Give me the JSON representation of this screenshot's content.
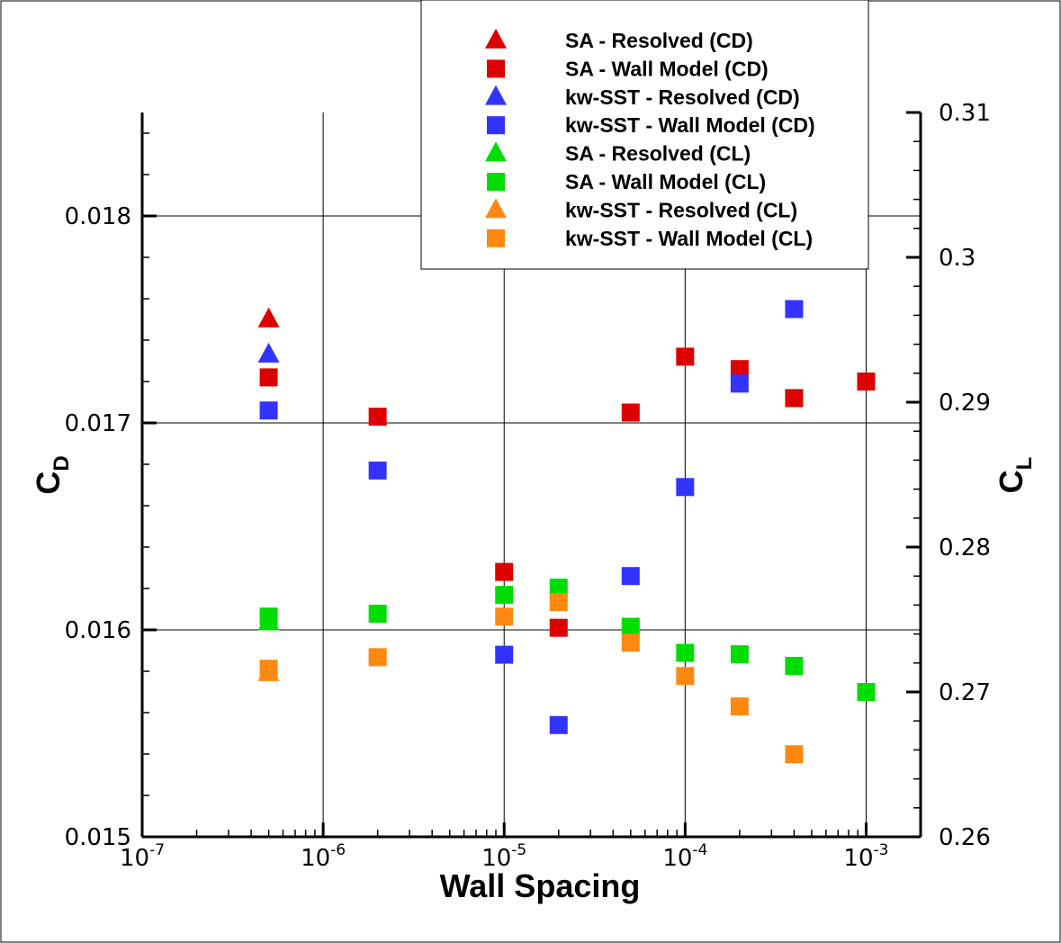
{
  "chart_data": {
    "type": "scatter",
    "xscale": "log",
    "xlabel": "Wall Spacing",
    "ylabel_left": {
      "main": "C",
      "sub": "D"
    },
    "ylabel_right": {
      "main": "C",
      "sub": "L"
    },
    "xlim": [
      1e-07,
      0.002
    ],
    "ylim_left": [
      0.015,
      0.0185
    ],
    "ylim_right": [
      0.26,
      0.31
    ],
    "x_tick_labels": [
      {
        "value": 1e-07,
        "base": "10",
        "exp": "-7"
      },
      {
        "value": 1e-06,
        "base": "10",
        "exp": "-6"
      },
      {
        "value": 1e-05,
        "base": "10",
        "exp": "-5"
      },
      {
        "value": 0.0001,
        "base": "10",
        "exp": "-4"
      },
      {
        "value": 0.001,
        "base": "10",
        "exp": "-3"
      }
    ],
    "y_left_ticks": [
      {
        "value": 0.015,
        "label": "0.015"
      },
      {
        "value": 0.016,
        "label": "0.016"
      },
      {
        "value": 0.017,
        "label": "0.017"
      },
      {
        "value": 0.018,
        "label": "0.018"
      }
    ],
    "y_right_ticks": [
      {
        "value": 0.26,
        "label": "0.26"
      },
      {
        "value": 0.27,
        "label": "0.27"
      },
      {
        "value": 0.28,
        "label": "0.28"
      },
      {
        "value": 0.29,
        "label": "0.29"
      },
      {
        "value": 0.3,
        "label": "0.3"
      },
      {
        "value": 0.31,
        "label": "0.31"
      }
    ],
    "grid": true,
    "legend_position": "top-center",
    "series": [
      {
        "name": "SA - Resolved (CD)",
        "marker": "triangle",
        "color": "#dd0000",
        "axis": "left",
        "points": [
          {
            "x": 5e-07,
            "y": 0.0175
          }
        ]
      },
      {
        "name": "SA - Wall Model (CD)",
        "marker": "square",
        "color": "#dd0000",
        "axis": "left",
        "points": [
          {
            "x": 5e-07,
            "y": 0.01722
          },
          {
            "x": 2e-06,
            "y": 0.01703
          },
          {
            "x": 1e-05,
            "y": 0.01628
          },
          {
            "x": 2e-05,
            "y": 0.01601
          },
          {
            "x": 5e-05,
            "y": 0.01705
          },
          {
            "x": 0.0001,
            "y": 0.01732
          },
          {
            "x": 0.0002,
            "y": 0.01726
          },
          {
            "x": 0.0004,
            "y": 0.01712
          },
          {
            "x": 0.001,
            "y": 0.0172
          }
        ]
      },
      {
        "name": "kw-SST - Resolved (CD)",
        "marker": "triangle",
        "color": "#3333ff",
        "axis": "left",
        "points": [
          {
            "x": 5e-07,
            "y": 0.01733
          }
        ]
      },
      {
        "name": "kw-SST - Wall Model (CD)",
        "marker": "square",
        "color": "#3333ff",
        "axis": "left",
        "points": [
          {
            "x": 5e-07,
            "y": 0.01706
          },
          {
            "x": 2e-06,
            "y": 0.01677
          },
          {
            "x": 1e-05,
            "y": 0.01588
          },
          {
            "x": 2e-05,
            "y": 0.01554
          },
          {
            "x": 5e-05,
            "y": 0.01626
          },
          {
            "x": 0.0001,
            "y": 0.01669
          },
          {
            "x": 0.0002,
            "y": 0.01719
          },
          {
            "x": 0.0004,
            "y": 0.01755
          }
        ]
      },
      {
        "name": "SA - Resolved (CL)",
        "marker": "triangle",
        "color": "#00dd00",
        "axis": "right",
        "points": [
          {
            "x": 5e-07,
            "y": 0.2748
          }
        ]
      },
      {
        "name": "SA - Wall Model (CL)",
        "marker": "square",
        "color": "#00dd00",
        "axis": "right",
        "points": [
          {
            "x": 5e-07,
            "y": 0.2752
          },
          {
            "x": 2e-06,
            "y": 0.2754
          },
          {
            "x": 1e-05,
            "y": 0.2767
          },
          {
            "x": 2e-05,
            "y": 0.2772
          },
          {
            "x": 5e-05,
            "y": 0.2745
          },
          {
            "x": 0.0001,
            "y": 0.2727
          },
          {
            "x": 0.0002,
            "y": 0.2726
          },
          {
            "x": 0.0004,
            "y": 0.2718
          },
          {
            "x": 0.001,
            "y": 0.27
          }
        ]
      },
      {
        "name": "kw-SST - Resolved (CL)",
        "marker": "triangle",
        "color": "#ff8811",
        "axis": "right",
        "points": [
          {
            "x": 5e-07,
            "y": 0.2713
          }
        ]
      },
      {
        "name": "kw-SST - Wall Model (CL)",
        "marker": "square",
        "color": "#ff8811",
        "axis": "right",
        "points": [
          {
            "x": 5e-07,
            "y": 0.2716
          },
          {
            "x": 2e-06,
            "y": 0.2724
          },
          {
            "x": 1e-05,
            "y": 0.2752
          },
          {
            "x": 2e-05,
            "y": 0.2762
          },
          {
            "x": 5e-05,
            "y": 0.2734
          },
          {
            "x": 0.0001,
            "y": 0.2711
          },
          {
            "x": 0.0002,
            "y": 0.269
          },
          {
            "x": 0.0004,
            "y": 0.2657
          }
        ]
      }
    ]
  }
}
